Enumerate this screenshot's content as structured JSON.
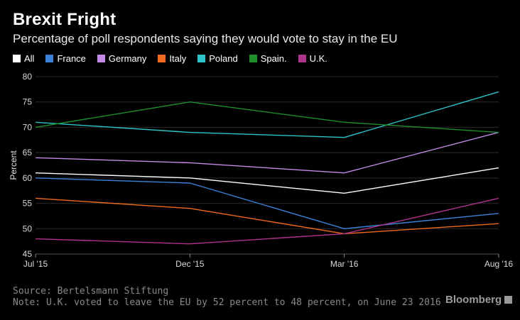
{
  "header": {
    "title": "Brexit Fright",
    "subtitle": "Percentage of poll respondents saying they would vote to stay in the EU"
  },
  "chart_data": {
    "type": "line",
    "title": "Brexit Fright",
    "subtitle": "Percentage of poll respondents saying they would vote to stay in the EU",
    "xlabel": "",
    "ylabel": "Percent",
    "categories": [
      "Jul '15",
      "Dec '15",
      "Mar '16",
      "Aug '16"
    ],
    "ylim": [
      45,
      80
    ],
    "yticks": [
      45,
      50,
      55,
      60,
      65,
      70,
      75,
      80
    ],
    "grid": true,
    "legend_position": "top-left",
    "series": [
      {
        "name": "All",
        "color": "#ffffff",
        "values": [
          61,
          60,
          57,
          62
        ]
      },
      {
        "name": "France",
        "color": "#3b82d6",
        "values": [
          60,
          59,
          50,
          53
        ]
      },
      {
        "name": "Germany",
        "color": "#c58ae8",
        "values": [
          64,
          63,
          61,
          69
        ]
      },
      {
        "name": "Italy",
        "color": "#ef6a1f",
        "values": [
          56,
          54,
          49,
          51
        ]
      },
      {
        "name": "Poland",
        "color": "#2ec4c9",
        "values": [
          71,
          69,
          68,
          77
        ]
      },
      {
        "name": "Spain.",
        "color": "#1f8f2c",
        "values": [
          70,
          75,
          71,
          69
        ]
      },
      {
        "name": "U.K.",
        "color": "#b0338b",
        "values": [
          48,
          47,
          49,
          56
        ]
      }
    ]
  },
  "footer": {
    "source": "Source: Bertelsmann Stiftung",
    "note": "Note: U.K. voted to leave the EU by 52 percent to 48 percent, on June 23 2016",
    "brand": "Bloomberg"
  }
}
